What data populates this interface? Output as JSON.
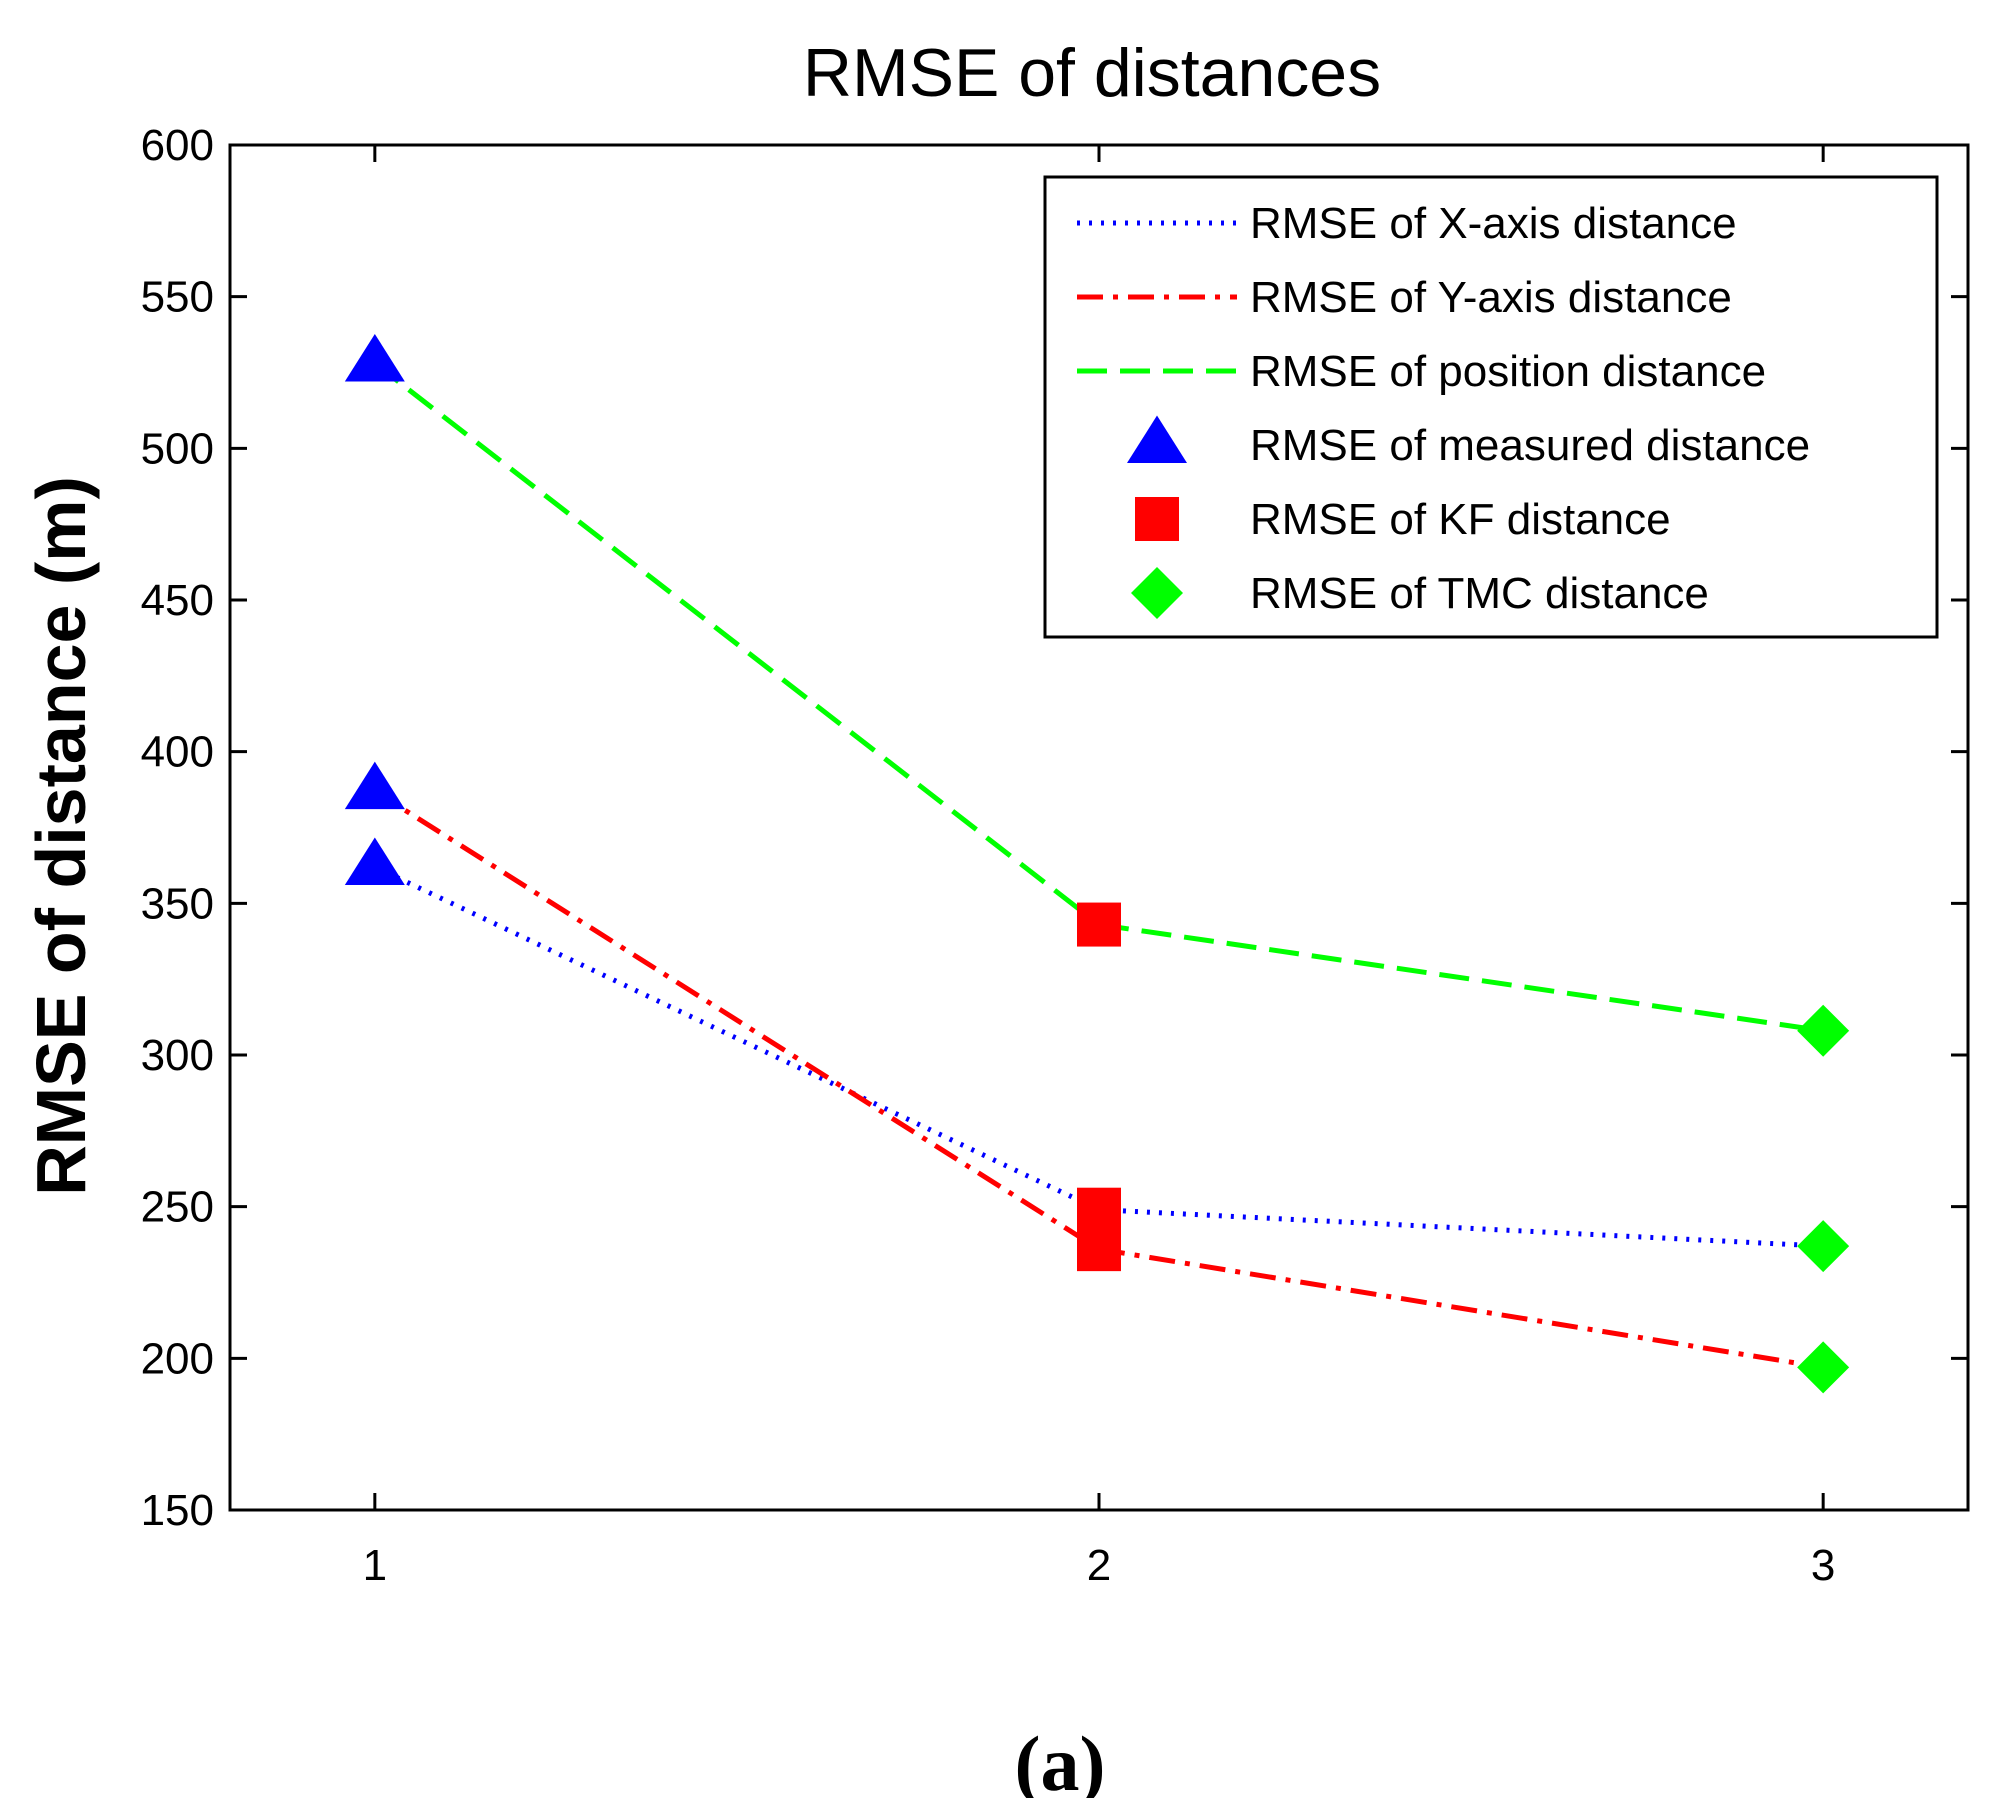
{
  "chart_data": {
    "type": "line",
    "title": "RMSE of distances",
    "xlabel": "",
    "ylabel": "RMSE of distance (m)",
    "caption": "(a)",
    "xlim": [
      0.8,
      3.2
    ],
    "ylim": [
      150,
      600
    ],
    "xticks": [
      1,
      2,
      3
    ],
    "yticks": [
      150,
      200,
      250,
      300,
      350,
      400,
      450,
      500,
      550,
      600
    ],
    "grid": false,
    "legend_position": "top-right",
    "series": [
      {
        "name": "RMSE of X-axis distance",
        "style": "dotted",
        "color": "#0000ff",
        "x": [
          1,
          2,
          3
        ],
        "values": [
          362,
          249,
          237
        ]
      },
      {
        "name": "RMSE of Y-axis distance",
        "style": "dashdot",
        "color": "#ff0000",
        "x": [
          1,
          2,
          3
        ],
        "values": [
          387,
          236,
          197
        ]
      },
      {
        "name": "RMSE of position distance",
        "style": "dashed",
        "color": "#00ff00",
        "x": [
          1,
          2,
          3
        ],
        "values": [
          528,
          343,
          308
        ]
      }
    ],
    "markers": [
      {
        "name": "RMSE of measured distance",
        "shape": "triangle",
        "color": "#0000ff",
        "points": [
          [
            1,
            362
          ],
          [
            1,
            387
          ],
          [
            1,
            528
          ]
        ]
      },
      {
        "name": "RMSE of KF distance",
        "shape": "square",
        "color": "#ff0000",
        "points": [
          [
            2,
            236
          ],
          [
            2,
            249
          ],
          [
            2,
            343
          ]
        ]
      },
      {
        "name": "RMSE of TMC distance",
        "shape": "diamond",
        "color": "#00ff00",
        "points": [
          [
            3,
            197
          ],
          [
            3,
            237
          ],
          [
            3,
            308
          ]
        ]
      }
    ]
  }
}
